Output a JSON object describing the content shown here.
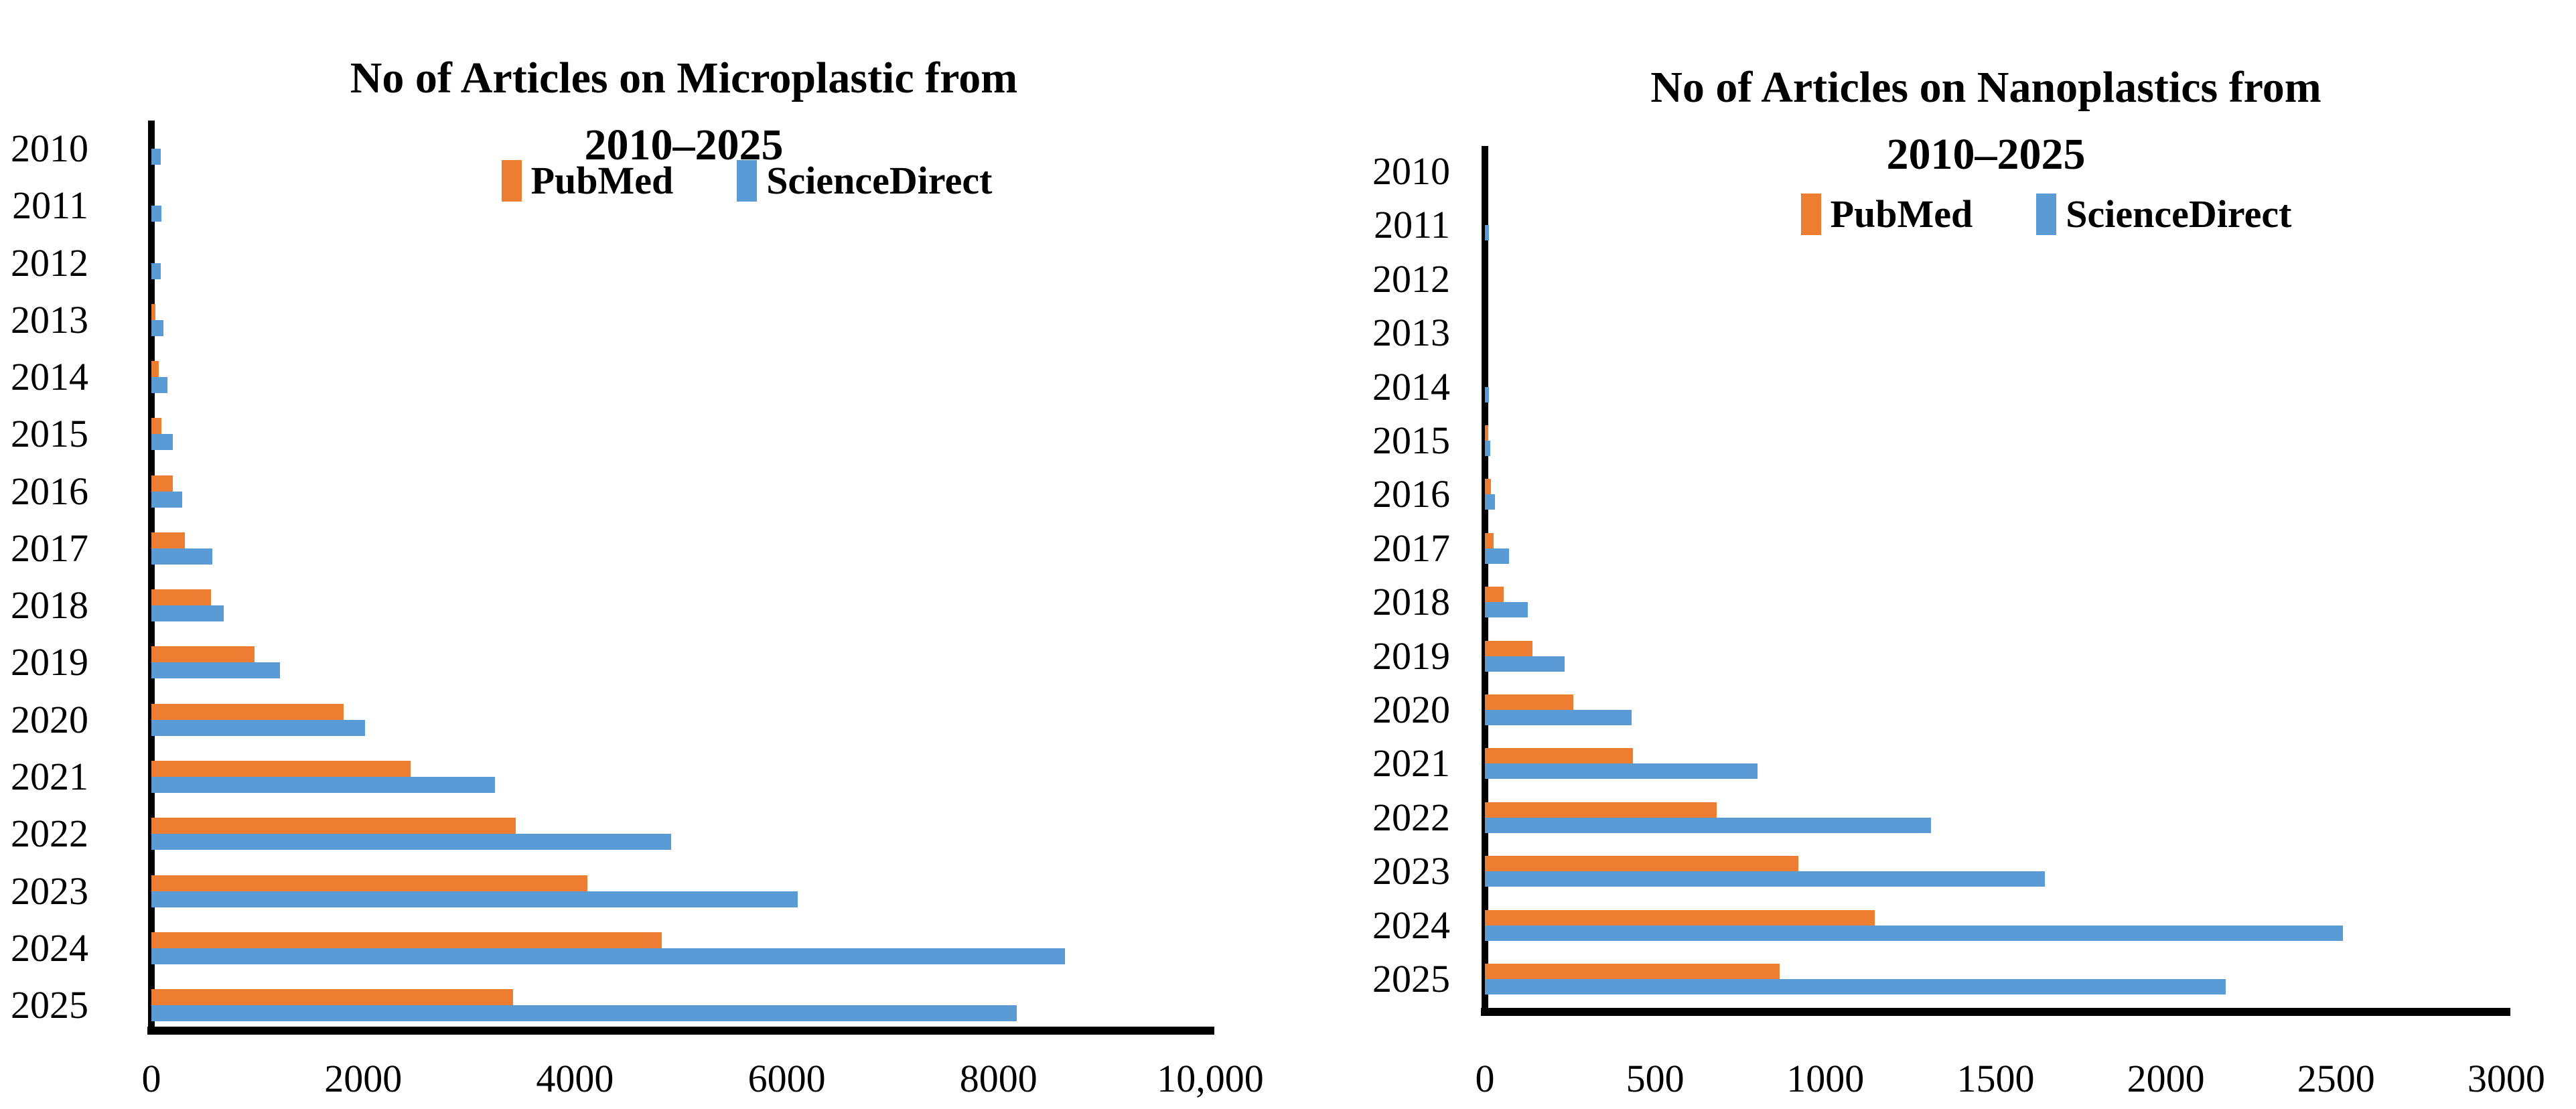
{
  "figure": {
    "background": "#ffffff",
    "description_colors": {
      "pubmed_orange": "#ED7D31",
      "sciencedirect_blue": "#5B9BD5",
      "axis_black": "#000000"
    }
  },
  "chart_data": [
    {
      "type": "bar",
      "orientation": "horizontal",
      "title_line1": "No of Articles on Microplastic from",
      "title_line2": "2010–2025",
      "title": "No of Articles on Microplastic from 2010–2025",
      "categories": [
        "2010",
        "2011",
        "2012",
        "2013",
        "2014",
        "2015",
        "2016",
        "2017",
        "2018",
        "2019",
        "2020",
        "2021",
        "2022",
        "2023",
        "2024",
        "2025"
      ],
      "series": [
        {
          "name": "PubMed",
          "color": "#ED7D31",
          "values": [
            0,
            0,
            0,
            35,
            70,
            95,
            200,
            315,
            560,
            975,
            1815,
            2450,
            3440,
            4120,
            4820,
            3415
          ]
        },
        {
          "name": "ScienceDirect",
          "color": "#5B9BD5",
          "values": [
            90,
            95,
            90,
            115,
            150,
            205,
            290,
            575,
            685,
            1215,
            2020,
            3245,
            4910,
            6105,
            8630,
            8175
          ]
        }
      ],
      "xlabel": "",
      "ylabel": "",
      "xlim": [
        0,
        10000
      ],
      "xticks": [
        0,
        2000,
        4000,
        6000,
        8000,
        10000
      ],
      "xtick_labels": [
        "0",
        "2000",
        "4000",
        "6000",
        "8000",
        "10,000"
      ],
      "grid": false,
      "legend_position": "top-inside"
    },
    {
      "type": "bar",
      "orientation": "horizontal",
      "title_line1": "No of Articles on Nanoplastics from",
      "title_line2": "2010–2025",
      "title": "No of Articles on Nanoplastics from 2010–2025",
      "categories": [
        "2010",
        "2011",
        "2012",
        "2013",
        "2014",
        "2015",
        "2016",
        "2017",
        "2018",
        "2019",
        "2020",
        "2021",
        "2022",
        "2023",
        "2024",
        "2025"
      ],
      "series": [
        {
          "name": "PubMed",
          "color": "#ED7D31",
          "values": [
            0,
            0,
            0,
            0,
            0,
            10,
            18,
            25,
            55,
            140,
            260,
            435,
            680,
            920,
            1145,
            865
          ]
        },
        {
          "name": "ScienceDirect",
          "color": "#5B9BD5",
          "values": [
            0,
            12,
            0,
            0,
            12,
            15,
            30,
            70,
            125,
            235,
            430,
            800,
            1310,
            1645,
            2520,
            2175
          ]
        }
      ],
      "xlabel": "",
      "ylabel": "",
      "xlim": [
        0,
        3000
      ],
      "xticks": [
        0,
        500,
        1000,
        1500,
        2000,
        2500,
        3000
      ],
      "xtick_labels": [
        "0",
        "500",
        "1000",
        "1500",
        "2000",
        "2500",
        "3000"
      ],
      "grid": false,
      "legend_position": "top-inside"
    }
  ]
}
